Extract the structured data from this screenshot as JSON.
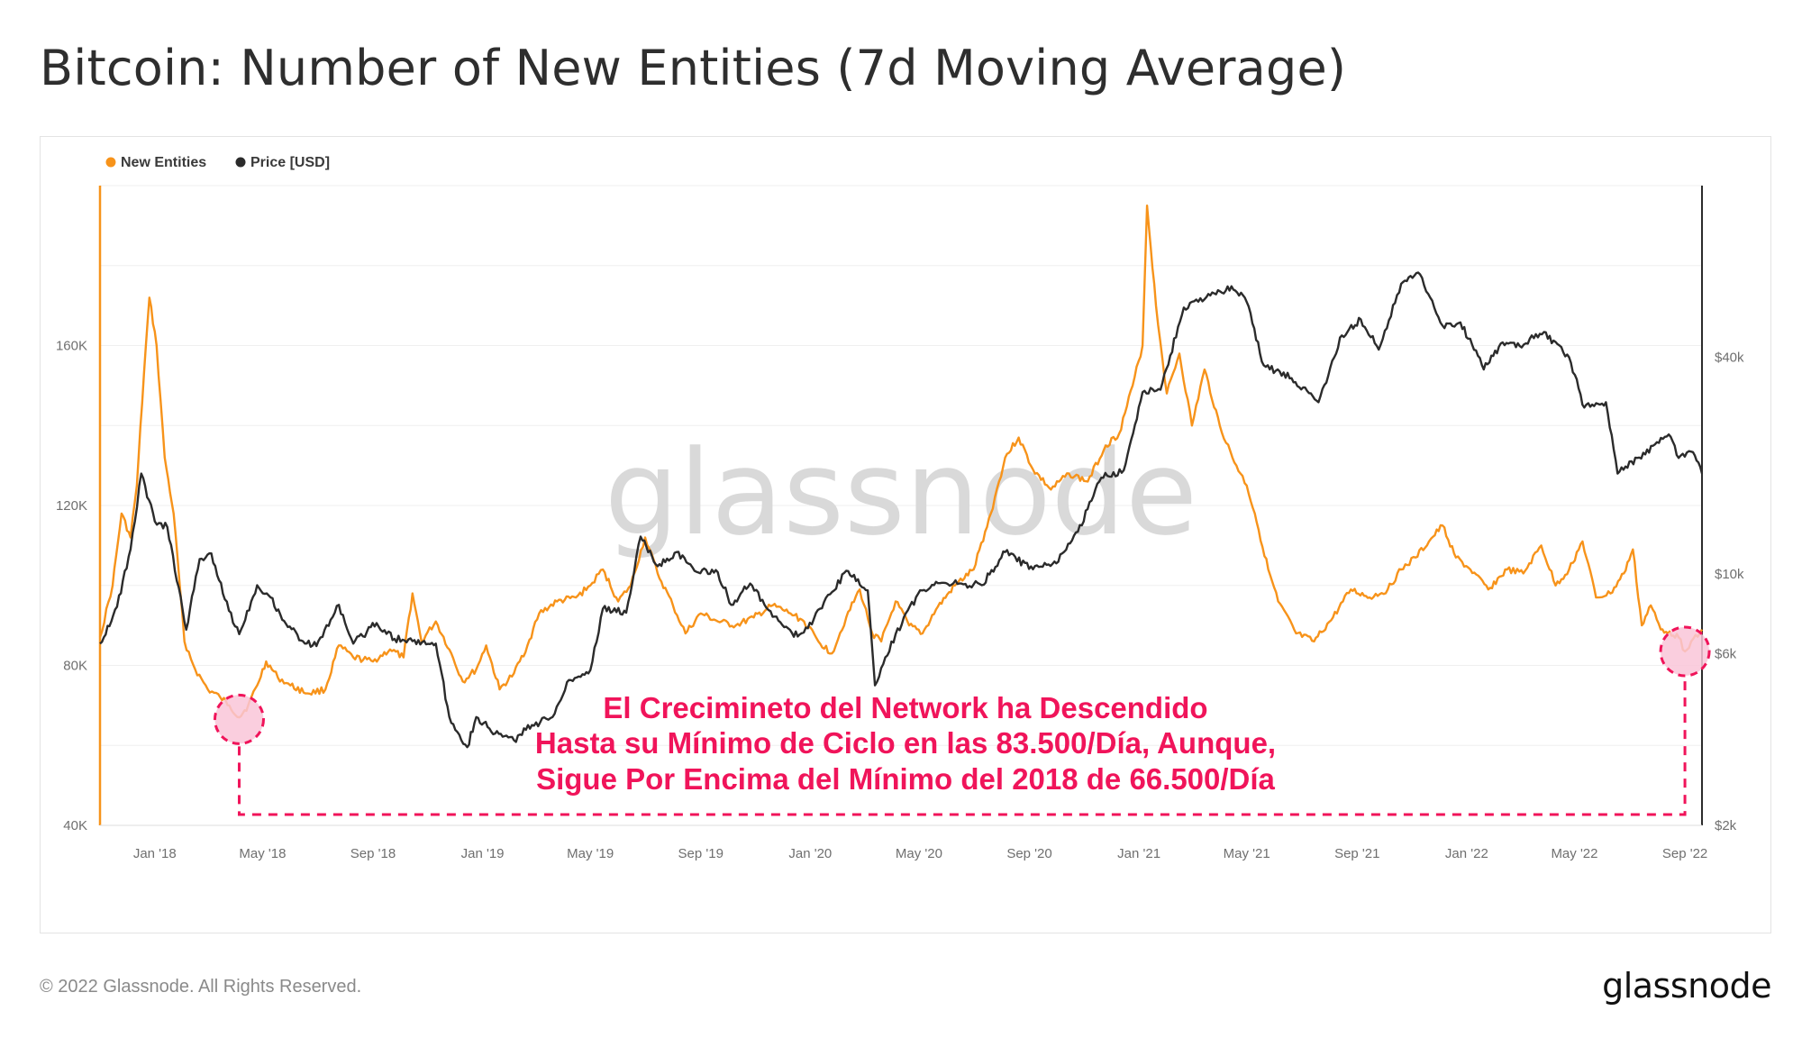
{
  "header": {
    "title": "Bitcoin: Number of New Entities (7d Moving Average)"
  },
  "footer": {
    "copyright": "© 2022 Glassnode. All Rights Reserved.",
    "logo_text": "glassnode"
  },
  "watermark": "glassnode",
  "colors": {
    "new_entities": "#f7931a",
    "price": "#2b2b2b",
    "annotation": "#f0145a",
    "marker_fill": "#f9c6d8",
    "grid": "#efefef"
  },
  "chart_data": {
    "type": "line",
    "legend": {
      "position": "top-left",
      "entries": [
        "New Entities",
        "Price [USD]"
      ]
    },
    "grid": true,
    "x_ticks": [
      "Jan '18",
      "May '18",
      "Sep '18",
      "Jan '19",
      "May '19",
      "Sep '19",
      "Jan '20",
      "May '20",
      "Sep '20",
      "Jan '21",
      "May '21",
      "Sep '21",
      "Jan '22",
      "May '22",
      "Sep '22"
    ],
    "x_range": [
      "2017-11-01",
      "2022-09-20"
    ],
    "y_left": {
      "ticks": [
        "40K",
        "80K",
        "120K",
        "160K"
      ],
      "tick_values": [
        40000,
        80000,
        120000,
        160000
      ],
      "range": [
        40000,
        200000
      ]
    },
    "y_right": {
      "ticks": [
        "$2k",
        "$6k",
        "$10k",
        "$40k"
      ],
      "tick_values": [
        2000,
        6000,
        10000,
        40000
      ],
      "scale": "log",
      "range": [
        2000,
        120000
      ]
    },
    "series": [
      {
        "name": "New Entities",
        "axis": "left",
        "points": [
          [
            "2017-11-01",
            87000
          ],
          [
            "2017-11-15",
            100000
          ],
          [
            "2017-11-25",
            118000
          ],
          [
            "2017-12-05",
            112000
          ],
          [
            "2017-12-12",
            125000
          ],
          [
            "2017-12-20",
            153000
          ],
          [
            "2017-12-26",
            172000
          ],
          [
            "2018-01-03",
            160000
          ],
          [
            "2018-01-12",
            132000
          ],
          [
            "2018-01-22",
            118000
          ],
          [
            "2018-02-03",
            86000
          ],
          [
            "2018-02-15",
            79000
          ],
          [
            "2018-03-01",
            74000
          ],
          [
            "2018-03-15",
            72000
          ],
          [
            "2018-03-25",
            70000
          ],
          [
            "2018-04-05",
            67000
          ],
          [
            "2018-04-15",
            70000
          ],
          [
            "2018-04-25",
            75000
          ],
          [
            "2018-05-05",
            81000
          ],
          [
            "2018-05-18",
            77000
          ],
          [
            "2018-06-01",
            75000
          ],
          [
            "2018-06-20",
            73000
          ],
          [
            "2018-07-10",
            74000
          ],
          [
            "2018-07-25",
            85000
          ],
          [
            "2018-08-10",
            82000
          ],
          [
            "2018-09-01",
            81000
          ],
          [
            "2018-09-20",
            84000
          ],
          [
            "2018-10-05",
            82000
          ],
          [
            "2018-10-15",
            98000
          ],
          [
            "2018-10-25",
            86000
          ],
          [
            "2018-11-10",
            91000
          ],
          [
            "2018-11-25",
            84000
          ],
          [
            "2018-12-10",
            76000
          ],
          [
            "2018-12-25",
            79000
          ],
          [
            "2019-01-05",
            85000
          ],
          [
            "2019-01-20",
            74000
          ],
          [
            "2019-02-05",
            78000
          ],
          [
            "2019-02-20",
            85000
          ],
          [
            "2019-03-05",
            93000
          ],
          [
            "2019-03-25",
            96000
          ],
          [
            "2019-04-15",
            97000
          ],
          [
            "2019-05-01",
            100000
          ],
          [
            "2019-05-15",
            104000
          ],
          [
            "2019-06-01",
            96000
          ],
          [
            "2019-06-15",
            100000
          ],
          [
            "2019-07-01",
            112000
          ],
          [
            "2019-07-15",
            103000
          ],
          [
            "2019-08-01",
            95000
          ],
          [
            "2019-08-15",
            88000
          ],
          [
            "2019-09-01",
            93000
          ],
          [
            "2019-09-20",
            91000
          ],
          [
            "2019-10-10",
            90000
          ],
          [
            "2019-10-30",
            92000
          ],
          [
            "2019-11-20",
            95000
          ],
          [
            "2019-12-10",
            93000
          ],
          [
            "2019-12-25",
            91000
          ],
          [
            "2020-01-10",
            86000
          ],
          [
            "2020-01-25",
            83000
          ],
          [
            "2020-02-10",
            92000
          ],
          [
            "2020-02-25",
            99000
          ],
          [
            "2020-03-10",
            88000
          ],
          [
            "2020-03-20",
            86000
          ],
          [
            "2020-04-05",
            96000
          ],
          [
            "2020-04-20",
            90000
          ],
          [
            "2020-05-05",
            88000
          ],
          [
            "2020-05-20",
            94000
          ],
          [
            "2020-06-10",
            100000
          ],
          [
            "2020-07-01",
            104000
          ],
          [
            "2020-07-20",
            118000
          ],
          [
            "2020-08-05",
            132000
          ],
          [
            "2020-08-20",
            137000
          ],
          [
            "2020-09-05",
            129000
          ],
          [
            "2020-09-25",
            124000
          ],
          [
            "2020-10-15",
            128000
          ],
          [
            "2020-11-05",
            126000
          ],
          [
            "2020-11-25",
            135000
          ],
          [
            "2020-12-10",
            138000
          ],
          [
            "2020-12-25",
            150000
          ],
          [
            "2021-01-05",
            160000
          ],
          [
            "2021-01-10",
            195000
          ],
          [
            "2021-01-20",
            170000
          ],
          [
            "2021-02-01",
            148000
          ],
          [
            "2021-02-15",
            158000
          ],
          [
            "2021-03-01",
            140000
          ],
          [
            "2021-03-15",
            154000
          ],
          [
            "2021-04-01",
            140000
          ],
          [
            "2021-04-15",
            132000
          ],
          [
            "2021-05-01",
            125000
          ],
          [
            "2021-05-10",
            118000
          ],
          [
            "2021-05-25",
            104000
          ],
          [
            "2021-06-05",
            96000
          ],
          [
            "2021-06-25",
            88000
          ],
          [
            "2021-07-15",
            86000
          ],
          [
            "2021-08-05",
            92000
          ],
          [
            "2021-08-25",
            99000
          ],
          [
            "2021-09-15",
            97000
          ],
          [
            "2021-10-05",
            99000
          ],
          [
            "2021-10-20",
            104000
          ],
          [
            "2021-11-05",
            107000
          ],
          [
            "2021-11-20",
            111000
          ],
          [
            "2021-12-05",
            115000
          ],
          [
            "2021-12-20",
            107000
          ],
          [
            "2022-01-05",
            104000
          ],
          [
            "2022-01-25",
            99000
          ],
          [
            "2022-02-15",
            104000
          ],
          [
            "2022-03-05",
            103000
          ],
          [
            "2022-03-25",
            110000
          ],
          [
            "2022-04-10",
            100000
          ],
          [
            "2022-04-25",
            104000
          ],
          [
            "2022-05-10",
            111000
          ],
          [
            "2022-05-25",
            97000
          ],
          [
            "2022-06-10",
            98000
          ],
          [
            "2022-06-25",
            103000
          ],
          [
            "2022-07-05",
            109000
          ],
          [
            "2022-07-15",
            90000
          ],
          [
            "2022-07-25",
            95000
          ],
          [
            "2022-08-05",
            89000
          ],
          [
            "2022-08-15",
            88500
          ],
          [
            "2022-08-25",
            87000
          ],
          [
            "2022-09-01",
            83500
          ],
          [
            "2022-09-08",
            86000
          ],
          [
            "2022-09-20",
            89000
          ]
        ]
      },
      {
        "name": "Price [USD]",
        "axis": "right",
        "points": [
          [
            "2017-11-01",
            6400
          ],
          [
            "2017-11-20",
            8100
          ],
          [
            "2017-12-05",
            11700
          ],
          [
            "2017-12-17",
            19000
          ],
          [
            "2018-01-01",
            14000
          ],
          [
            "2018-01-15",
            13500
          ],
          [
            "2018-02-05",
            7000
          ],
          [
            "2018-02-20",
            11000
          ],
          [
            "2018-03-05",
            11400
          ],
          [
            "2018-03-20",
            8500
          ],
          [
            "2018-04-05",
            6800
          ],
          [
            "2018-04-25",
            9300
          ],
          [
            "2018-05-10",
            8600
          ],
          [
            "2018-05-25",
            7400
          ],
          [
            "2018-06-15",
            6500
          ],
          [
            "2018-06-30",
            6300
          ],
          [
            "2018-07-25",
            8200
          ],
          [
            "2018-08-10",
            6400
          ],
          [
            "2018-09-05",
            7300
          ],
          [
            "2018-09-25",
            6600
          ],
          [
            "2018-10-15",
            6500
          ],
          [
            "2018-11-10",
            6400
          ],
          [
            "2018-11-25",
            4000
          ],
          [
            "2018-12-15",
            3300
          ],
          [
            "2018-12-25",
            4000
          ],
          [
            "2019-01-15",
            3600
          ],
          [
            "2019-02-05",
            3450
          ],
          [
            "2019-02-25",
            3800
          ],
          [
            "2019-03-20",
            4000
          ],
          [
            "2019-04-05",
            5000
          ],
          [
            "2019-05-01",
            5400
          ],
          [
            "2019-05-15",
            8000
          ],
          [
            "2019-06-10",
            7800
          ],
          [
            "2019-06-26",
            12700
          ],
          [
            "2019-07-15",
            10500
          ],
          [
            "2019-08-05",
            11500
          ],
          [
            "2019-08-25",
            10200
          ],
          [
            "2019-09-20",
            10100
          ],
          [
            "2019-10-05",
            8200
          ],
          [
            "2019-10-26",
            9400
          ],
          [
            "2019-11-20",
            7600
          ],
          [
            "2019-12-18",
            6700
          ],
          [
            "2020-01-05",
            7500
          ],
          [
            "2020-02-10",
            10200
          ],
          [
            "2020-03-05",
            9000
          ],
          [
            "2020-03-13",
            4900
          ],
          [
            "2020-04-05",
            6800
          ],
          [
            "2020-04-30",
            8800
          ],
          [
            "2020-05-20",
            9500
          ],
          [
            "2020-06-15",
            9400
          ],
          [
            "2020-07-10",
            9300
          ],
          [
            "2020-08-05",
            11500
          ],
          [
            "2020-09-05",
            10300
          ],
          [
            "2020-10-01",
            10700
          ],
          [
            "2020-10-25",
            13100
          ],
          [
            "2020-11-20",
            18500
          ],
          [
            "2020-12-15",
            19400
          ],
          [
            "2021-01-05",
            32000
          ],
          [
            "2021-01-25",
            32500
          ],
          [
            "2021-02-20",
            55000
          ],
          [
            "2021-03-15",
            58000
          ],
          [
            "2021-04-14",
            63000
          ],
          [
            "2021-05-01",
            57000
          ],
          [
            "2021-05-20",
            38000
          ],
          [
            "2021-06-20",
            35000
          ],
          [
            "2021-07-20",
            30000
          ],
          [
            "2021-08-15",
            46000
          ],
          [
            "2021-09-05",
            51000
          ],
          [
            "2021-09-25",
            42000
          ],
          [
            "2021-10-20",
            64000
          ],
          [
            "2021-11-10",
            68000
          ],
          [
            "2021-12-05",
            49000
          ],
          [
            "2021-12-25",
            50000
          ],
          [
            "2022-01-20",
            37000
          ],
          [
            "2022-02-10",
            44000
          ],
          [
            "2022-03-01",
            43000
          ],
          [
            "2022-03-28",
            47000
          ],
          [
            "2022-04-25",
            40000
          ],
          [
            "2022-05-12",
            29000
          ],
          [
            "2022-06-05",
            30000
          ],
          [
            "2022-06-18",
            19000
          ],
          [
            "2022-07-10",
            21000
          ],
          [
            "2022-08-14",
            24400
          ],
          [
            "2022-08-25",
            21000
          ],
          [
            "2022-09-10",
            21800
          ],
          [
            "2022-09-20",
            19000
          ]
        ]
      }
    ],
    "annotations": [
      {
        "lines": [
          "El Crecimineto del Network ha Descendido",
          "Hasta su Mínimo de Ciclo en las 83.500/Día, Aunque,",
          "Sigue Por Encima del Mínimo del 2018 de 66.500/Día"
        ]
      }
    ],
    "markers": [
      {
        "date": "2018-04-05",
        "value": 66500
      },
      {
        "date": "2022-09-01",
        "value": 83500
      }
    ]
  }
}
